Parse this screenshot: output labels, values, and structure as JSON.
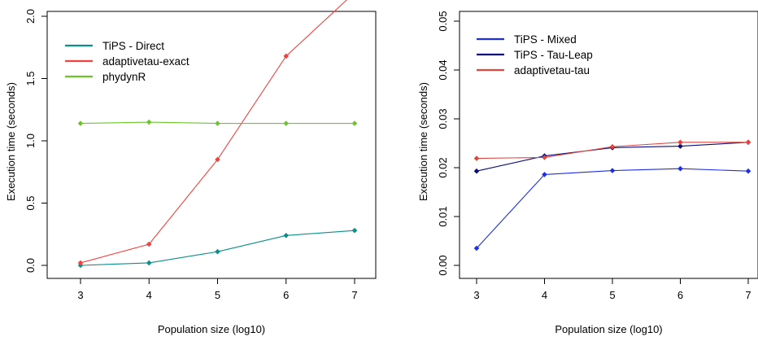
{
  "chart_data": [
    {
      "type": "line",
      "xlabel": "Population size (log10)",
      "ylabel": "Execution time (seconds)",
      "x": [
        3,
        4,
        5,
        6,
        7
      ],
      "xticks": [
        "3",
        "4",
        "5",
        "6",
        "7"
      ],
      "xlim": [
        3,
        7
      ],
      "ylim": [
        0,
        2.2
      ],
      "yticks": [
        "0.0",
        "0.5",
        "1.0",
        "1.5",
        "2.0"
      ],
      "legend_position": "top-left",
      "series": [
        {
          "name": "TiPS - Direct",
          "color": "#0a8f8a",
          "values": [
            0.0,
            0.02,
            0.11,
            0.24,
            0.28
          ]
        },
        {
          "name": "adaptivetau-exact",
          "color": "#f2423e",
          "values": [
            0.02,
            0.17,
            0.85,
            1.68,
            2.19
          ]
        },
        {
          "name": "phydynR",
          "color": "#6cc62a",
          "values": [
            1.14,
            1.15,
            1.14,
            1.14,
            1.14
          ]
        }
      ]
    },
    {
      "type": "line",
      "xlabel": "Population size (log10)",
      "ylabel": "Execution time (seconds)",
      "x": [
        3,
        4,
        5,
        6,
        7
      ],
      "xticks": [
        "3",
        "4",
        "5",
        "6",
        "7"
      ],
      "xlim": [
        3,
        7
      ],
      "ylim": [
        0,
        0.05
      ],
      "yticks": [
        "0.00",
        "0.01",
        "0.02",
        "0.03",
        "0.04",
        "0.05"
      ],
      "legend_position": "top-left",
      "series": [
        {
          "name": "TiPS - Mixed",
          "color": "#1f2fe6",
          "values": [
            0.0035,
            0.0186,
            0.0194,
            0.0198,
            0.0193
          ]
        },
        {
          "name": "TiPS - Tau-Leap",
          "color": "#0b0b7a",
          "values": [
            0.0193,
            0.0224,
            0.0241,
            0.0244,
            0.0252
          ]
        },
        {
          "name": "adaptivetau-tau",
          "color": "#e0473f",
          "values": [
            0.0219,
            0.0221,
            0.0243,
            0.0252,
            0.0252
          ]
        }
      ]
    }
  ]
}
